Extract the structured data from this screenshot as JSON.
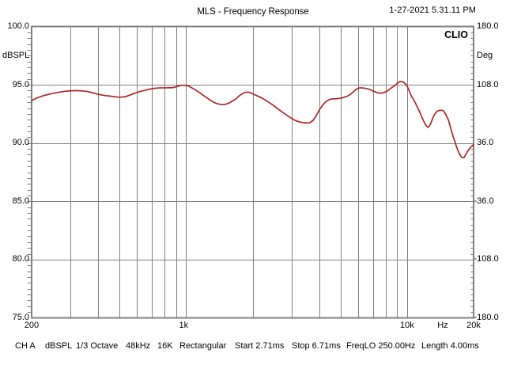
{
  "header": {
    "title": "MLS - Frequency Response",
    "timestamp": "1-27-2021 5.31.11 PM"
  },
  "watermark": "CLIO",
  "chart_data": {
    "type": "line",
    "title": "MLS - Frequency Response",
    "grid": true,
    "legend": "none",
    "colors": {
      "curve": "#aa2726",
      "grid": "#808080",
      "border": "#808080",
      "background": "#ffffff"
    },
    "x_axis": {
      "scale": "log",
      "min_hz": 200,
      "max_hz": 20000,
      "unit": "Hz",
      "gridlines_hz": [
        300,
        400,
        500,
        600,
        700,
        800,
        900,
        1000,
        2000,
        3000,
        4000,
        5000,
        6000,
        7000,
        8000,
        9000,
        10000
      ],
      "tick_labels": [
        {
          "hz": 200,
          "text": "200"
        },
        {
          "hz": 1000,
          "text": "1k"
        },
        {
          "hz": 10000,
          "text": "10k"
        },
        {
          "hz": 14500,
          "text": "Hz"
        },
        {
          "hz": 20000,
          "text": "20k"
        }
      ]
    },
    "y_axis_left": {
      "unit": "dBSPL",
      "min": 75.0,
      "max": 100.0,
      "major_step": 5.0,
      "minor_tick_step": 0.5,
      "labels": [
        {
          "value": 100.0,
          "text": "100.0"
        },
        {
          "value": 95.0,
          "text": "95.0"
        },
        {
          "value": 90.0,
          "text": "90.0"
        },
        {
          "value": 85.0,
          "text": "85.0"
        },
        {
          "value": 80.0,
          "text": "80.0"
        },
        {
          "value": 75.0,
          "text": "75.0"
        }
      ]
    },
    "y_axis_right": {
      "unit": "Deg",
      "min": -180.0,
      "max": 180.0,
      "major_step": 72.0,
      "labels": [
        {
          "value": 180.0,
          "text": "180.0"
        },
        {
          "value": 108.0,
          "text": "108.0"
        },
        {
          "value": 36.0,
          "text": "36.0"
        },
        {
          "value": -36.0,
          "text": "-36.0"
        },
        {
          "value": -108.0,
          "text": "-108.0"
        },
        {
          "value": -180.0,
          "text": "-180.0"
        }
      ]
    },
    "series": [
      {
        "name": "frequency-response",
        "color": "#aa2726",
        "points_hz_db": [
          [
            200,
            93.65
          ],
          [
            207,
            93.79
          ],
          [
            214,
            93.91
          ],
          [
            221,
            94.0
          ],
          [
            228,
            94.09
          ],
          [
            238,
            94.17
          ],
          [
            246,
            94.24
          ],
          [
            256,
            94.3
          ],
          [
            265,
            94.36
          ],
          [
            276,
            94.41
          ],
          [
            287,
            94.45
          ],
          [
            299,
            94.48
          ],
          [
            315,
            94.5
          ],
          [
            331,
            94.49
          ],
          [
            344,
            94.46
          ],
          [
            359,
            94.42
          ],
          [
            371,
            94.35
          ],
          [
            383,
            94.28
          ],
          [
            400,
            94.19
          ],
          [
            416,
            94.12
          ],
          [
            434,
            94.07
          ],
          [
            452,
            94.03
          ],
          [
            467,
            93.99
          ],
          [
            487,
            93.95
          ],
          [
            507,
            93.94
          ],
          [
            529,
            93.97
          ],
          [
            546,
            94.06
          ],
          [
            565,
            94.16
          ],
          [
            584,
            94.27
          ],
          [
            603,
            94.36
          ],
          [
            623,
            94.44
          ],
          [
            650,
            94.52
          ],
          [
            671,
            94.59
          ],
          [
            694,
            94.65
          ],
          [
            723,
            94.7
          ],
          [
            753,
            94.73
          ],
          [
            811,
            94.74
          ],
          [
            867,
            94.75
          ],
          [
            896,
            94.82
          ],
          [
            933,
            94.92
          ],
          [
            965,
            94.96
          ],
          [
            997,
            94.95
          ],
          [
            1030,
            94.88
          ],
          [
            1060,
            94.74
          ],
          [
            1110,
            94.53
          ],
          [
            1160,
            94.28
          ],
          [
            1210,
            94.03
          ],
          [
            1260,
            93.8
          ],
          [
            1310,
            93.58
          ],
          [
            1350,
            93.45
          ],
          [
            1410,
            93.34
          ],
          [
            1460,
            93.31
          ],
          [
            1510,
            93.33
          ],
          [
            1560,
            93.42
          ],
          [
            1610,
            93.57
          ],
          [
            1680,
            93.78
          ],
          [
            1730,
            94.02
          ],
          [
            1790,
            94.22
          ],
          [
            1850,
            94.35
          ],
          [
            1910,
            94.37
          ],
          [
            1980,
            94.28
          ],
          [
            2040,
            94.15
          ],
          [
            2130,
            94.0
          ],
          [
            2220,
            93.83
          ],
          [
            2310,
            93.63
          ],
          [
            2410,
            93.4
          ],
          [
            2510,
            93.17
          ],
          [
            2610,
            92.92
          ],
          [
            2720,
            92.67
          ],
          [
            2840,
            92.42
          ],
          [
            2960,
            92.19
          ],
          [
            3080,
            91.99
          ],
          [
            3210,
            91.85
          ],
          [
            3350,
            91.76
          ],
          [
            3490,
            91.73
          ],
          [
            3630,
            91.74
          ],
          [
            3760,
            91.95
          ],
          [
            3880,
            92.35
          ],
          [
            4010,
            92.85
          ],
          [
            4150,
            93.25
          ],
          [
            4290,
            93.55
          ],
          [
            4430,
            93.72
          ],
          [
            4580,
            93.79
          ],
          [
            4770,
            93.8
          ],
          [
            4970,
            93.84
          ],
          [
            5140,
            93.9
          ],
          [
            5310,
            93.99
          ],
          [
            5440,
            94.08
          ],
          [
            5580,
            94.22
          ],
          [
            5720,
            94.4
          ],
          [
            5860,
            94.58
          ],
          [
            6010,
            94.71
          ],
          [
            6160,
            94.74
          ],
          [
            6310,
            94.73
          ],
          [
            6520,
            94.68
          ],
          [
            6740,
            94.62
          ],
          [
            6910,
            94.52
          ],
          [
            7140,
            94.41
          ],
          [
            7380,
            94.31
          ],
          [
            7570,
            94.28
          ],
          [
            7750,
            94.3
          ],
          [
            7950,
            94.38
          ],
          [
            8150,
            94.48
          ],
          [
            8350,
            94.62
          ],
          [
            8560,
            94.78
          ],
          [
            8780,
            94.91
          ],
          [
            8990,
            95.08
          ],
          [
            9140,
            95.21
          ],
          [
            9300,
            95.28
          ],
          [
            9450,
            95.29
          ],
          [
            9610,
            95.24
          ],
          [
            9770,
            95.12
          ],
          [
            9930,
            95.0
          ],
          [
            10090,
            94.74
          ],
          [
            10260,
            94.42
          ],
          [
            10430,
            94.08
          ],
          [
            10610,
            93.85
          ],
          [
            10780,
            93.62
          ],
          [
            10960,
            93.35
          ],
          [
            11140,
            93.08
          ],
          [
            11330,
            92.78
          ],
          [
            11520,
            92.48
          ],
          [
            11710,
            92.16
          ],
          [
            11900,
            91.87
          ],
          [
            12100,
            91.6
          ],
          [
            12300,
            91.42
          ],
          [
            12450,
            91.36
          ],
          [
            12610,
            91.45
          ],
          [
            12820,
            91.72
          ],
          [
            13030,
            92.08
          ],
          [
            13250,
            92.38
          ],
          [
            13470,
            92.6
          ],
          [
            13690,
            92.72
          ],
          [
            13920,
            92.79
          ],
          [
            14150,
            92.81
          ],
          [
            14390,
            92.81
          ],
          [
            14620,
            92.76
          ],
          [
            14870,
            92.55
          ],
          [
            15110,
            92.3
          ],
          [
            15370,
            92.0
          ],
          [
            15620,
            91.55
          ],
          [
            15880,
            91.05
          ],
          [
            16140,
            90.6
          ],
          [
            16410,
            90.2
          ],
          [
            16680,
            89.78
          ],
          [
            16960,
            89.39
          ],
          [
            17240,
            89.09
          ],
          [
            17530,
            88.85
          ],
          [
            17820,
            88.74
          ],
          [
            18120,
            88.77
          ],
          [
            18420,
            89.0
          ],
          [
            18720,
            89.22
          ],
          [
            19040,
            89.45
          ],
          [
            19350,
            89.61
          ],
          [
            19670,
            89.74
          ],
          [
            20000,
            89.88
          ]
        ]
      }
    ]
  },
  "status_bar": {
    "items": [
      {
        "text": "CH A"
      },
      {
        "text": "dBSPL"
      },
      {
        "text": "1/3 Octave"
      },
      {
        "text": "48kHz"
      },
      {
        "text": "16K"
      },
      {
        "text": "Rectangular"
      },
      {
        "text": "Start 2.71ms"
      },
      {
        "text": "Stop 6.71ms"
      },
      {
        "text": "FreqLO 250.00Hz"
      },
      {
        "text": "Length 4.00ms"
      }
    ]
  }
}
